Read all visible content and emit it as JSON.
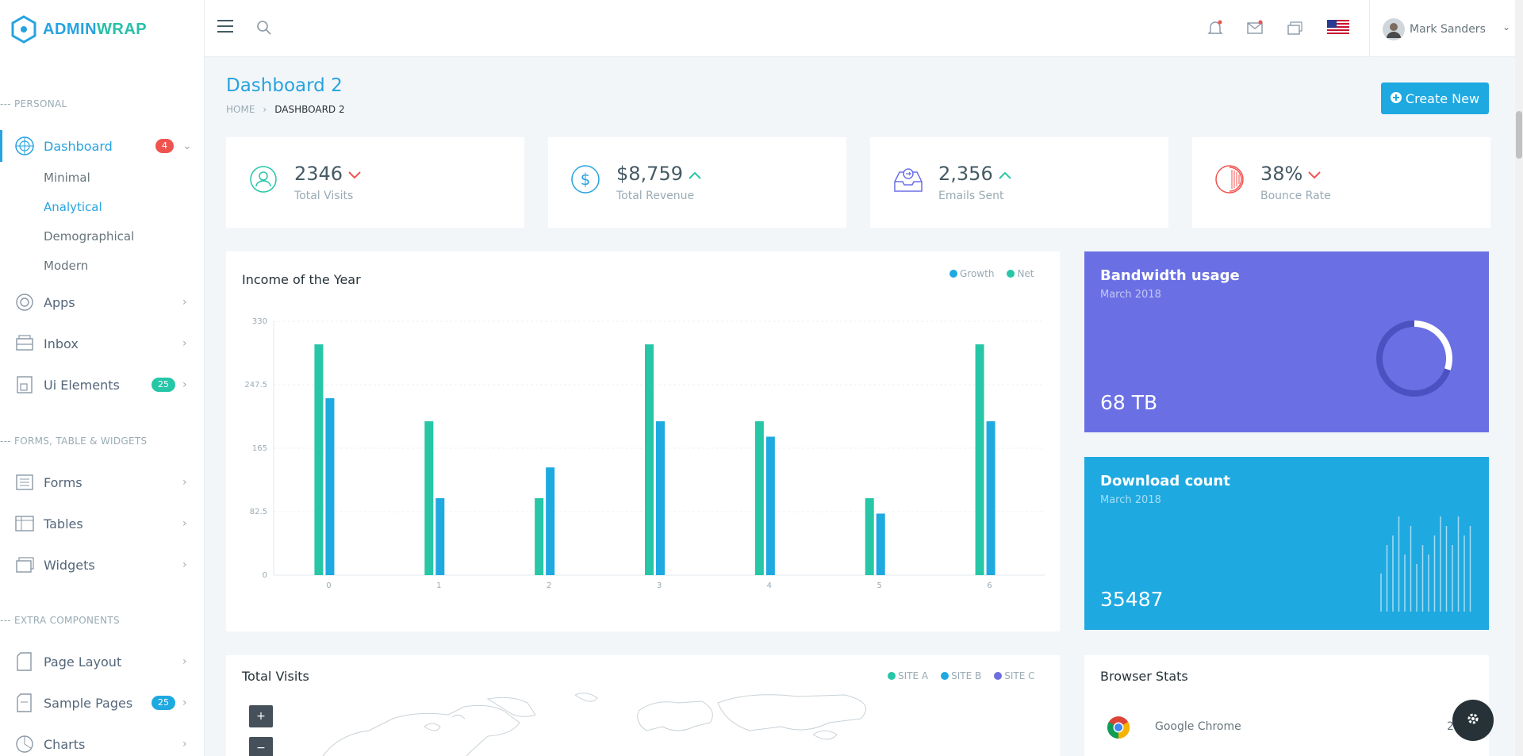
{
  "brand": {
    "part1": "ADMIN",
    "part2": "WRAP"
  },
  "sidebar": {
    "sections": [
      "--- PERSONAL",
      "--- FORMS, TABLE & WIDGETS",
      "--- EXTRA COMPONENTS"
    ],
    "dashboard": {
      "label": "Dashboard",
      "badge": "4",
      "sub": [
        "Minimal",
        "Analytical",
        "Demographical",
        "Modern"
      ],
      "active_sub": "Analytical"
    },
    "items": [
      {
        "label": "Apps",
        "icon": "apps-icon"
      },
      {
        "label": "Inbox",
        "icon": "inbox-icon"
      },
      {
        "label": "Ui Elements",
        "icon": "ui-elements-icon",
        "badge": "25"
      },
      {
        "label": "Forms",
        "icon": "forms-icon"
      },
      {
        "label": "Tables",
        "icon": "tables-icon"
      },
      {
        "label": "Widgets",
        "icon": "widgets-icon"
      },
      {
        "label": "Page Layout",
        "icon": "page-layout-icon"
      },
      {
        "label": "Sample Pages",
        "icon": "sample-pages-icon",
        "badge": "25"
      },
      {
        "label": "Charts",
        "icon": "charts-icon"
      }
    ]
  },
  "topbar": {
    "user_name": "Mark Sanders",
    "icons": [
      "menu-icon",
      "search-icon",
      "bell-icon",
      "mail-icon",
      "box-icon",
      "us-flag-icon"
    ]
  },
  "header": {
    "title": "Dashboard 2",
    "breadcrumb": [
      "HOME",
      "DASHBOARD 2"
    ],
    "create_button": "Create New"
  },
  "stats": [
    {
      "value": "2346",
      "label": "Total Visits",
      "trend": "down",
      "icon": "user-target-icon"
    },
    {
      "value": "$8,759",
      "label": "Total Revenue",
      "trend": "up",
      "icon": "dollar-icon"
    },
    {
      "value": "2,356",
      "label": "Emails Sent",
      "trend": "up",
      "icon": "inbox-tray-icon"
    },
    {
      "value": "38%",
      "label": "Bounce Rate",
      "trend": "down",
      "icon": "half-circle-icon"
    }
  ],
  "colors": {
    "primary": "#26a3e0",
    "teal": "#26c6a6",
    "blue": "#1ea9e1",
    "purple": "#6a70e4",
    "red": "#ef5350",
    "map_purple": "#6e6ee0"
  },
  "income_card": {
    "title": "Income of the Year"
  },
  "chart_data": {
    "type": "bar",
    "title": "Income of the Year",
    "categories": [
      "0",
      "1",
      "2",
      "3",
      "4",
      "5",
      "6"
    ],
    "series": [
      {
        "name": "Net",
        "color": "#26c6a6",
        "values": [
          300,
          200,
          100,
          300,
          200,
          100,
          300
        ]
      },
      {
        "name": "Growth",
        "color": "#1ea9e1",
        "values": [
          230,
          100,
          140,
          200,
          180,
          80,
          200
        ]
      }
    ],
    "yticks": [
      "0",
      "82.5",
      "165",
      "247.5",
      "330"
    ],
    "ylim": [
      0,
      330
    ],
    "legend": [
      "Growth",
      "Net"
    ],
    "legend_position": "top-right",
    "grid": true
  },
  "bandwidth": {
    "title": "Bandwidth usage",
    "subtitle": "March 2018",
    "value": "68 TB",
    "donut_fraction": 0.3
  },
  "download": {
    "title": "Download count",
    "subtitle": "March 2018",
    "value": "35487",
    "spark": [
      4,
      7,
      8,
      10,
      6,
      9,
      5,
      7,
      6,
      8,
      10,
      9,
      7,
      10,
      8,
      9
    ]
  },
  "visits_card": {
    "title": "Total Visits",
    "legend": [
      "SITE A",
      "SITE B",
      "SITE C"
    ],
    "zoom_in": "+",
    "zoom_out": "−"
  },
  "browser_card": {
    "title": "Browser Stats",
    "rows": [
      {
        "name": "Google Chrome",
        "value": "23"
      }
    ]
  }
}
